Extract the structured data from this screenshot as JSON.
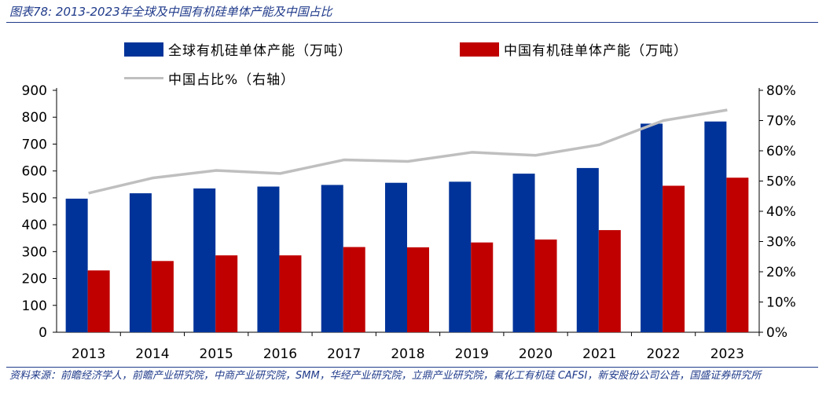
{
  "figure_title": "图表78: 2013-2023年全球及中国有机硅单体产能及中国占比",
  "source_note": "资料来源：前瞻经济学人，前瞻产业研究院，中商产业研究院，SMM，华经产业研究院，立鼎产业研究院，氟化工有机硅 CAFSI，新安股份公司公告，国盛证券研究所",
  "chart_data": {
    "type": "bar",
    "categories": [
      "2013",
      "2014",
      "2015",
      "2016",
      "2017",
      "2018",
      "2019",
      "2020",
      "2021",
      "2022",
      "2023"
    ],
    "series": [
      {
        "name": "全球有机硅单体产能（万吨）",
        "type": "bar",
        "axis": "left",
        "color": "#003399",
        "values": [
          497,
          517,
          535,
          542,
          548,
          556,
          560,
          590,
          611,
          776,
          784
        ]
      },
      {
        "name": "中国有机硅单体产能（万吨）",
        "type": "bar",
        "axis": "left",
        "color": "#c00000",
        "values": [
          230,
          265,
          286,
          286,
          317,
          316,
          334,
          345,
          380,
          545,
          575
        ]
      },
      {
        "name": "中国占比%（右轴）",
        "type": "line",
        "axis": "right",
        "color": "#bfbfbf",
        "values": [
          46,
          51,
          53.5,
          52.5,
          57,
          56.5,
          59.5,
          58.5,
          62,
          70,
          73.5
        ]
      }
    ],
    "y_left": {
      "min": 0,
      "max": 900,
      "step": 100,
      "ticks": [
        "0",
        "100",
        "200",
        "300",
        "400",
        "500",
        "600",
        "700",
        "800",
        "900"
      ]
    },
    "y_right": {
      "min": 0,
      "max": 80,
      "step": 10,
      "ticks": [
        "0%",
        "10%",
        "20%",
        "30%",
        "40%",
        "50%",
        "60%",
        "70%",
        "80%"
      ]
    },
    "xlabel": "",
    "ylabel": "",
    "grid": false,
    "legend_position": "top"
  }
}
